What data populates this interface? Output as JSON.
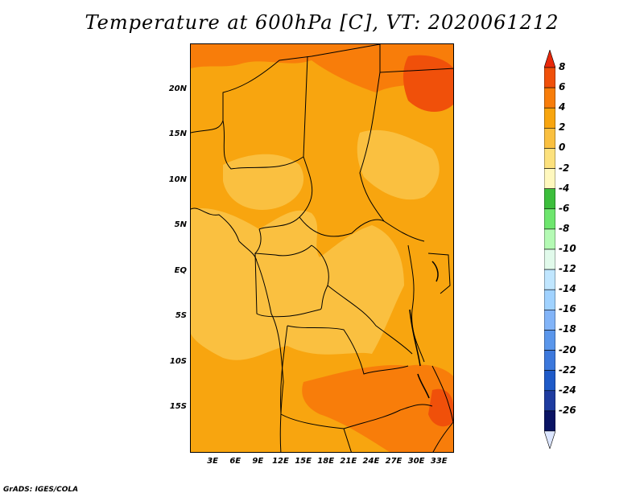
{
  "title": "Temperature at 600hPa [C], VT: 2020061212",
  "credit": "GrADS: IGES/COLA",
  "map": {
    "lat_labels": [
      "20N",
      "15N",
      "10N",
      "5N",
      "EQ",
      "5S",
      "10S",
      "15S"
    ],
    "lon_labels": [
      "3E",
      "6E",
      "9E",
      "12E",
      "15E",
      "18E",
      "21E",
      "24E",
      "27E",
      "30E",
      "33E"
    ],
    "lat_values": [
      20,
      15,
      10,
      5,
      0,
      -5,
      -10,
      -15
    ],
    "lon_values": [
      3,
      6,
      9,
      12,
      15,
      18,
      21,
      24,
      27,
      30,
      33
    ],
    "lon_range": [
      0,
      35
    ],
    "lat_range": [
      -20,
      25
    ]
  },
  "colorbar": {
    "labels": [
      "8",
      "6",
      "4",
      "2",
      "0",
      "-2",
      "-4",
      "-6",
      "-8",
      "-10",
      "-12",
      "-14",
      "-16",
      "-18",
      "-20",
      "-22",
      "-24",
      "-26"
    ],
    "colors": [
      "#e8280a",
      "#f0500a",
      "#f87d0a",
      "#f8a50f",
      "#fac040",
      "#fce17d",
      "#fff8be",
      "#3cbe3c",
      "#6ee66e",
      "#b4fab4",
      "#e1faeb",
      "#c0e6ff",
      "#a0d2ff",
      "#82b4f8",
      "#5a96eb",
      "#3c78dc",
      "#1e5ac8",
      "#1e3ca0",
      "#0a1464",
      "#dce6ff"
    ]
  }
}
